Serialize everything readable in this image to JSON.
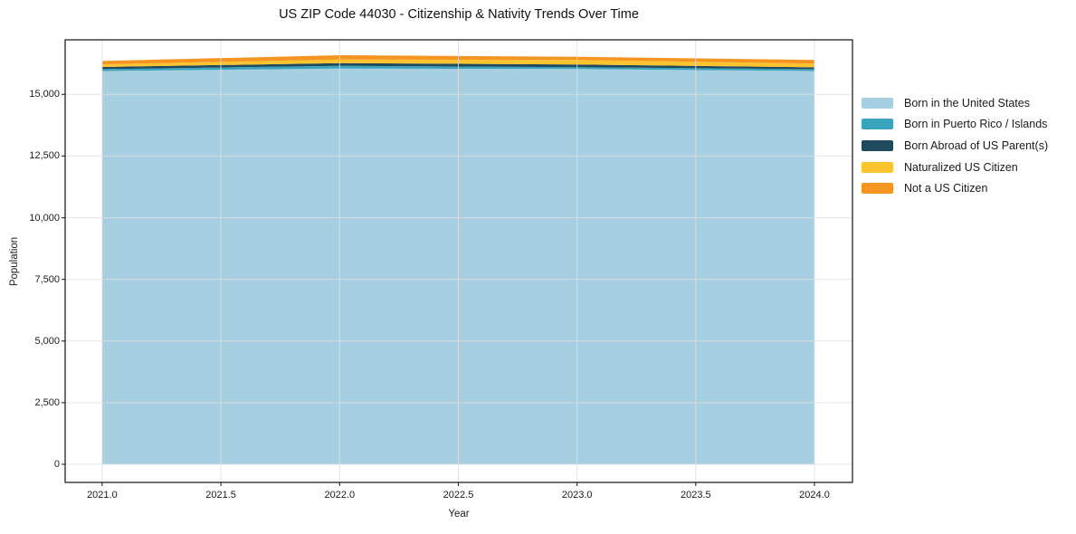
{
  "figure": {
    "background": "#ffffff"
  },
  "chart_data": {
    "type": "area",
    "stacked": true,
    "title": "US ZIP Code 44030 - Citizenship & Nativity Trends Over Time",
    "xlabel": "Year",
    "ylabel": "Population",
    "x": [
      2021,
      2022,
      2023,
      2024
    ],
    "series": [
      {
        "name": "Born in the United States",
        "color": "#a6cfe2",
        "values": [
          15950,
          16050,
          16030,
          15950
        ]
      },
      {
        "name": "Born in Puerto Rico / Islands",
        "color": "#3aa3bd",
        "values": [
          75,
          110,
          75,
          75
        ]
      },
      {
        "name": "Born Abroad of US Parent(s)",
        "color": "#1f4a5e",
        "values": [
          90,
          110,
          110,
          75
        ]
      },
      {
        "name": "Naturalized US Citizen",
        "color": "#fbc32d",
        "values": [
          110,
          150,
          185,
          150
        ]
      },
      {
        "name": "Not a US Citizen",
        "color": "#f69422",
        "values": [
          130,
          170,
          130,
          150
        ]
      }
    ],
    "totals_by_year": [
      16355,
      16590,
      16530,
      16400
    ],
    "xlim": [
      2020.844,
      2024.16
    ],
    "ylim": [
      -735,
      17215
    ],
    "xticks": {
      "values": [
        2021.0,
        2021.5,
        2022.0,
        2022.5,
        2023.0,
        2023.5,
        2024.0
      ],
      "labels": [
        "2021.0",
        "2021.5",
        "2022.0",
        "2022.5",
        "2023.0",
        "2023.5",
        "2024.0"
      ]
    },
    "yticks": {
      "values": [
        0,
        2500,
        5000,
        7500,
        10000,
        12500,
        15000
      ],
      "labels": [
        "0",
        "2,500",
        "5,000",
        "7,500",
        "10,000",
        "12,500",
        "15,000"
      ]
    },
    "grid": true,
    "legend_position": "right-outside"
  },
  "style": {
    "grid_color": "rgba(222,222,222,0.85)",
    "spine_color": "#222222",
    "tick_color": "#222222",
    "text_color": "#1a1a1a"
  }
}
